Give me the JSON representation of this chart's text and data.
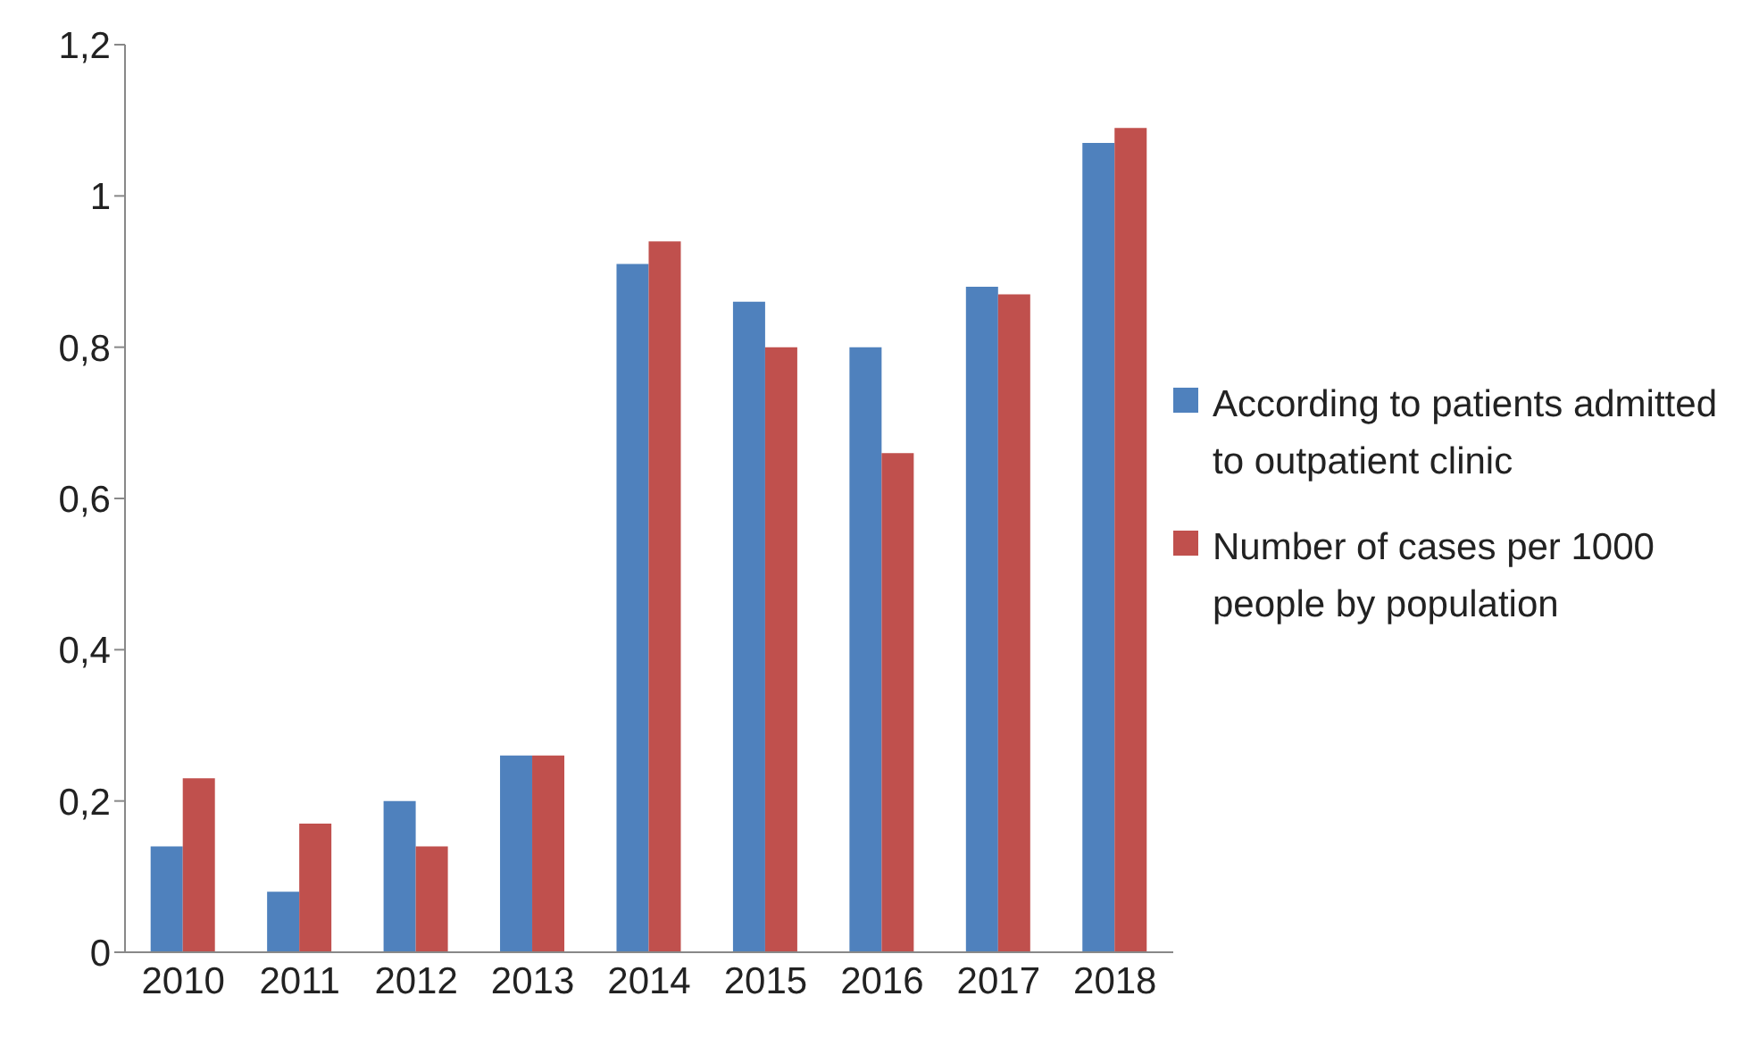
{
  "chart_data": {
    "type": "bar",
    "categories": [
      "2010",
      "2011",
      "2012",
      "2013",
      "2014",
      "2015",
      "2016",
      "2017",
      "2018"
    ],
    "series": [
      {
        "name": "According to patients admitted to outpatient clinic",
        "color": "#4f81bd",
        "values": [
          0.14,
          0.08,
          0.2,
          0.26,
          0.91,
          0.86,
          0.8,
          0.88,
          1.07
        ]
      },
      {
        "name": "Number of cases per 1000 people by population",
        "color": "#c0504d",
        "values": [
          0.23,
          0.17,
          0.14,
          0.26,
          0.94,
          0.8,
          0.66,
          0.87,
          1.09
        ]
      }
    ],
    "ylim": [
      0,
      1.2
    ],
    "yticks": [
      0,
      {
        "value": 0.2,
        "label": "0,2"
      },
      {
        "value": 0.4,
        "label": "0,4"
      },
      {
        "value": 0.6,
        "label": "0,6"
      },
      {
        "value": 0.8,
        "label": "0,8"
      },
      1,
      {
        "value": 1.2,
        "label": "1,2"
      }
    ],
    "grid": false,
    "legend": "right"
  }
}
